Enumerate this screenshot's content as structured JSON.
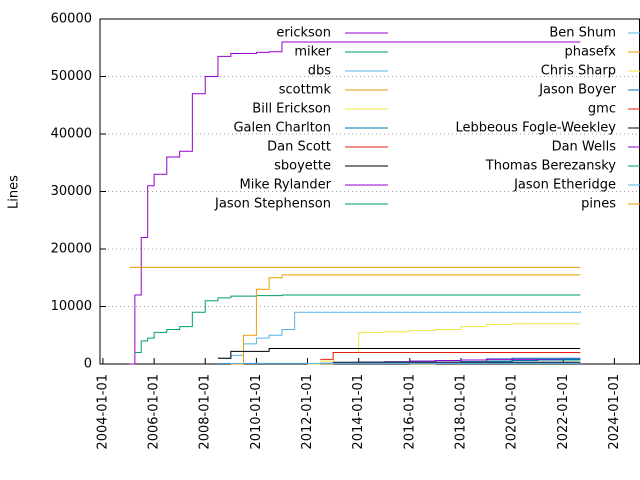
{
  "chart_data": {
    "type": "line",
    "step": true,
    "y_label": "Lines",
    "x": [
      "2005-01-15",
      "2005-04-01",
      "2005-07-01",
      "2005-10-01",
      "2006-01-01",
      "2006-07-01",
      "2007-01-01",
      "2007-07-01",
      "2008-01-01",
      "2008-07-01",
      "2009-01-01",
      "2009-07-01",
      "2010-01-01",
      "2010-07-01",
      "2011-01-01",
      "2011-07-01",
      "2012-01-01",
      "2012-07-01",
      "2013-01-01",
      "2014-01-01",
      "2015-01-01",
      "2016-01-01",
      "2017-01-01",
      "2018-01-01",
      "2019-01-01",
      "2020-01-01",
      "2021-01-01",
      "2022-01-01",
      "2022-09-01"
    ],
    "xlim": [
      "2003-11-20",
      "2025-01-01"
    ],
    "xticks": [
      "2004-01-01",
      "2006-01-01",
      "2008-01-01",
      "2010-01-01",
      "2012-01-01",
      "2014-01-01",
      "2016-01-01",
      "2018-01-01",
      "2020-01-01",
      "2022-01-01",
      "2024-01-01"
    ],
    "ylim": [
      0,
      60000
    ],
    "yticks": [
      0,
      10000,
      20000,
      30000,
      40000,
      50000,
      60000
    ],
    "grid": true,
    "series": [
      {
        "name": "erickson",
        "color": "#9400d3",
        "values": [
          0,
          12000,
          22000,
          31000,
          33000,
          36000,
          37000,
          47000,
          50000,
          53500,
          54000,
          54000,
          54200,
          54300,
          56000,
          56000,
          56000,
          56000,
          56000,
          56000,
          56000,
          56000,
          56000,
          56000,
          56000,
          56000,
          56000,
          56000,
          56000
        ]
      },
      {
        "name": "miker",
        "color": "#009e73",
        "values": [
          null,
          2000,
          4000,
          4500,
          5500,
          6000,
          6500,
          9000,
          11000,
          11500,
          11800,
          11800,
          11900,
          11900,
          12000,
          12000,
          12000,
          12000,
          12000,
          12000,
          12000,
          12000,
          12000,
          12000,
          12000,
          12000,
          12000,
          12000,
          12000
        ]
      },
      {
        "name": "dbs",
        "color": "#56b4e9",
        "values": [
          null,
          null,
          null,
          null,
          null,
          null,
          null,
          null,
          null,
          1000,
          1500,
          3500,
          4500,
          5000,
          6000,
          9000,
          9000,
          9000,
          9000,
          9000,
          9000,
          9000,
          9000,
          9000,
          9000,
          9000,
          9000,
          9000,
          9200
        ]
      },
      {
        "name": "scottmk",
        "color": "#e69f00",
        "values": [
          null,
          null,
          null,
          null,
          null,
          null,
          null,
          null,
          null,
          null,
          0,
          5000,
          13000,
          15000,
          15500,
          15500,
          15500,
          15500,
          15500,
          15500,
          15500,
          15500,
          15500,
          15500,
          15500,
          15500,
          15500,
          15500,
          15500
        ]
      },
      {
        "name": "Bill Erickson",
        "color": "#f0e442",
        "values": [
          null,
          null,
          null,
          null,
          null,
          null,
          null,
          null,
          null,
          null,
          null,
          null,
          null,
          null,
          null,
          null,
          0,
          500,
          2000,
          5500,
          5600,
          5800,
          6000,
          6500,
          6900,
          7000,
          7000,
          7000,
          7000
        ]
      },
      {
        "name": "Galen Charlton",
        "color": "#0072b2",
        "values": [
          null,
          null,
          null,
          null,
          null,
          null,
          null,
          null,
          null,
          null,
          null,
          null,
          null,
          null,
          null,
          null,
          null,
          100,
          200,
          300,
          400,
          500,
          600,
          700,
          900,
          1000,
          1000,
          1000,
          1000
        ]
      },
      {
        "name": "Dan Scott",
        "color": "#e51e10",
        "values": [
          null,
          null,
          null,
          null,
          null,
          null,
          null,
          null,
          null,
          null,
          null,
          null,
          null,
          null,
          null,
          null,
          null,
          800,
          2000,
          2000,
          2000,
          2000,
          2000,
          2000,
          2000,
          2000,
          2000,
          2000,
          2000
        ]
      },
      {
        "name": "sboyette",
        "color": "#000000",
        "values": [
          null,
          null,
          null,
          null,
          null,
          null,
          null,
          null,
          null,
          1000,
          2200,
          2200,
          2200,
          2700,
          2700,
          2700,
          2700,
          2700,
          2700,
          2700,
          2700,
          2700,
          2700,
          2700,
          2700,
          2700,
          2700,
          2700,
          2700
        ]
      },
      {
        "name": "Mike Rylander",
        "color": "#9400d3",
        "values": [
          null,
          null,
          null,
          null,
          null,
          null,
          null,
          null,
          null,
          null,
          null,
          null,
          null,
          null,
          null,
          null,
          null,
          100,
          200,
          300,
          400,
          500,
          600,
          700,
          800,
          800,
          800,
          800,
          800
        ]
      },
      {
        "name": "Jason Stephenson",
        "color": "#009e73",
        "values": [
          null,
          null,
          null,
          null,
          null,
          null,
          null,
          null,
          null,
          null,
          null,
          null,
          null,
          null,
          null,
          null,
          null,
          50,
          100,
          150,
          200,
          250,
          300,
          400,
          500,
          600,
          700,
          700,
          700
        ]
      },
      {
        "name": "Ben Shum",
        "color": "#56b4e9",
        "values": [
          null,
          null,
          null,
          null,
          null,
          null,
          null,
          null,
          null,
          null,
          null,
          null,
          null,
          null,
          null,
          null,
          null,
          null,
          100,
          200,
          300,
          300,
          300,
          300,
          300,
          300,
          300,
          300,
          300
        ]
      },
      {
        "name": "phasefx",
        "color": "#e69f00",
        "values": [
          null,
          null,
          null,
          null,
          null,
          null,
          null,
          null,
          null,
          null,
          null,
          null,
          null,
          null,
          null,
          null,
          null,
          50,
          100,
          150,
          200,
          200,
          200,
          200,
          200,
          200,
          200,
          200,
          200
        ]
      },
      {
        "name": "Chris Sharp",
        "color": "#f0e442",
        "values": [
          null,
          null,
          null,
          null,
          null,
          null,
          null,
          null,
          null,
          null,
          null,
          null,
          null,
          null,
          null,
          null,
          null,
          null,
          null,
          null,
          null,
          50,
          100,
          150,
          200,
          250,
          300,
          300,
          300
        ]
      },
      {
        "name": "Jason Boyer",
        "color": "#0072b2",
        "values": [
          null,
          null,
          null,
          null,
          null,
          null,
          null,
          null,
          null,
          null,
          null,
          null,
          null,
          null,
          null,
          null,
          null,
          null,
          null,
          null,
          100,
          200,
          300,
          400,
          500,
          600,
          700,
          800,
          800
        ]
      },
      {
        "name": "gmc",
        "color": "#e51e10",
        "values": [
          null,
          null,
          null,
          null,
          null,
          null,
          null,
          null,
          null,
          null,
          null,
          null,
          null,
          null,
          null,
          null,
          null,
          null,
          100,
          100,
          100,
          100,
          100,
          100,
          100,
          100,
          100,
          100,
          100
        ]
      },
      {
        "name": "Lebbeous Fogle-Weekley",
        "color": "#000000",
        "values": [
          null,
          null,
          null,
          null,
          null,
          null,
          null,
          null,
          null,
          null,
          null,
          null,
          null,
          null,
          null,
          null,
          null,
          null,
          300,
          300,
          300,
          300,
          300,
          300,
          300,
          300,
          300,
          300,
          300
        ]
      },
      {
        "name": "Dan Wells",
        "color": "#9400d3",
        "values": [
          null,
          null,
          null,
          null,
          null,
          null,
          null,
          null,
          null,
          null,
          null,
          null,
          null,
          null,
          null,
          null,
          null,
          null,
          200,
          200,
          200,
          200,
          200,
          200,
          200,
          200,
          200,
          200,
          200
        ]
      },
      {
        "name": "Thomas Berezansky",
        "color": "#009e73",
        "values": [
          null,
          null,
          null,
          null,
          null,
          null,
          null,
          null,
          null,
          null,
          null,
          null,
          null,
          null,
          null,
          null,
          null,
          null,
          150,
          150,
          150,
          150,
          150,
          150,
          150,
          150,
          150,
          150,
          150
        ]
      },
      {
        "name": "Jason Etheridge",
        "color": "#56b4e9",
        "values": [
          null,
          null,
          null,
          null,
          null,
          null,
          null,
          null,
          null,
          100,
          100,
          100,
          100,
          100,
          100,
          100,
          100,
          100,
          100,
          100,
          100,
          100,
          100,
          100,
          100,
          100,
          100,
          100,
          100
        ]
      },
      {
        "name": "pines",
        "color": "#e69f00",
        "values": [
          16800,
          16800,
          16800,
          16800,
          16800,
          16800,
          16800,
          16800,
          16800,
          16800,
          16800,
          16800,
          16800,
          16800,
          16800,
          16800,
          16800,
          16800,
          16800,
          16800,
          16800,
          16800,
          16800,
          16800,
          16800,
          16800,
          16800,
          16800,
          16800
        ]
      }
    ]
  }
}
